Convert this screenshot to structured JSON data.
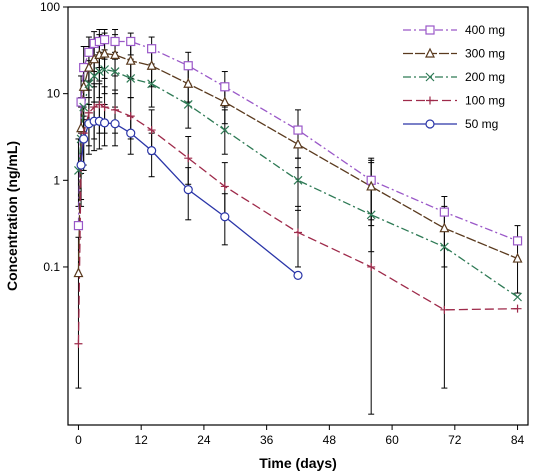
{
  "chart_data": {
    "type": "line",
    "xlabel": "Time (days)",
    "ylabel": "Concentration (ng/mL)",
    "x_ticks": [
      0,
      12,
      24,
      36,
      48,
      60,
      72,
      84
    ],
    "y_ticks": [
      {
        "value": 0.1,
        "label": "0.1"
      },
      {
        "value": 1,
        "label": "1"
      },
      {
        "value": 10,
        "label": "10"
      },
      {
        "value": 100,
        "label": "100"
      }
    ],
    "xlim": [
      -2,
      86
    ],
    "ylim": [
      0.0015,
      100
    ],
    "y_scale": "log",
    "grid": false,
    "legend_position": "top-right",
    "series": [
      {
        "name": "400 mg",
        "color": "#9a58c8",
        "dash": "8,3,2,3",
        "marker": "square",
        "points": [
          {
            "x": 0,
            "y": 0.3
          },
          {
            "x": 0.5,
            "y": 8,
            "lo": 3,
            "hi": 16
          },
          {
            "x": 1,
            "y": 20,
            "lo": 9,
            "hi": 35
          },
          {
            "x": 2,
            "y": 30,
            "lo": 14,
            "hi": 45
          },
          {
            "x": 3,
            "y": 38,
            "lo": 18,
            "hi": 52
          },
          {
            "x": 4,
            "y": 40,
            "lo": 20,
            "hi": 55
          },
          {
            "x": 5,
            "y": 42,
            "lo": 25,
            "hi": 55
          },
          {
            "x": 7,
            "y": 40,
            "lo": 25,
            "hi": 55
          },
          {
            "x": 10,
            "y": 40,
            "lo": 28,
            "hi": 50
          },
          {
            "x": 14,
            "y": 33,
            "lo": 22,
            "hi": 45
          },
          {
            "x": 21,
            "y": 21,
            "lo": 13,
            "hi": 30
          },
          {
            "x": 28,
            "y": 12,
            "lo": 7,
            "hi": 18
          },
          {
            "x": 42,
            "y": 3.8,
            "lo": 1.8,
            "hi": 6.5
          },
          {
            "x": 56,
            "y": 1.0,
            "lo": 0.35,
            "hi": 1.8
          },
          {
            "x": 70,
            "y": 0.43
          },
          {
            "x": 84,
            "y": 0.2
          }
        ]
      },
      {
        "name": "300 mg",
        "color": "#5a3a1e",
        "dash": "10,2",
        "marker": "triangle",
        "points": [
          {
            "x": 0,
            "y": 0.085
          },
          {
            "x": 0.5,
            "y": 4,
            "lo": 1.5,
            "hi": 9
          },
          {
            "x": 1,
            "y": 12,
            "lo": 5,
            "hi": 22
          },
          {
            "x": 2,
            "y": 20,
            "lo": 9,
            "hi": 35
          },
          {
            "x": 3,
            "y": 25,
            "lo": 12,
            "hi": 42
          },
          {
            "x": 4,
            "y": 28,
            "lo": 14,
            "hi": 48
          },
          {
            "x": 5,
            "y": 29,
            "lo": 15,
            "hi": 50
          },
          {
            "x": 7,
            "y": 28,
            "lo": 16,
            "hi": 48
          },
          {
            "x": 10,
            "y": 24,
            "lo": 15,
            "hi": 38
          },
          {
            "x": 14,
            "y": 21,
            "lo": 12,
            "hi": 32
          },
          {
            "x": 21,
            "y": 13,
            "lo": 8,
            "hi": 22
          },
          {
            "x": 28,
            "y": 8,
            "lo": 4.5,
            "hi": 13
          },
          {
            "x": 42,
            "y": 2.6,
            "lo": 1.4,
            "hi": 4
          },
          {
            "x": 56,
            "y": 0.85,
            "lo": 0.3,
            "hi": 1.6
          },
          {
            "x": 70,
            "y": 0.28,
            "lo": 0.1,
            "hi": 0.5
          },
          {
            "x": 84,
            "y": 0.125,
            "lo": 0.05,
            "hi": 0.3
          }
        ]
      },
      {
        "name": "200 mg",
        "color": "#2e7a55",
        "dash": "8,3,2,3",
        "marker": "x",
        "points": [
          {
            "x": 0,
            "y": 1.3,
            "lo": 0.5,
            "hi": 3
          },
          {
            "x": 0.5,
            "y": 3,
            "lo": 1.2,
            "hi": 7
          },
          {
            "x": 1,
            "y": 7,
            "lo": 3,
            "hi": 14
          },
          {
            "x": 2,
            "y": 13,
            "lo": 6,
            "hi": 24
          },
          {
            "x": 3,
            "y": 16,
            "lo": 8,
            "hi": 28
          },
          {
            "x": 4,
            "y": 18,
            "lo": 9,
            "hi": 30
          },
          {
            "x": 5,
            "y": 19,
            "lo": 10,
            "hi": 32
          },
          {
            "x": 7,
            "y": 18,
            "lo": 10,
            "hi": 30
          },
          {
            "x": 10,
            "y": 15,
            "lo": 9,
            "hi": 25
          },
          {
            "x": 14,
            "y": 13,
            "lo": 7,
            "hi": 20
          },
          {
            "x": 21,
            "y": 7.5,
            "lo": 4,
            "hi": 12
          },
          {
            "x": 28,
            "y": 3.8,
            "lo": 2,
            "hi": 6.5
          },
          {
            "x": 42,
            "y": 1.0,
            "lo": 0.45,
            "hi": 1.8
          },
          {
            "x": 56,
            "y": 0.4,
            "lo": 0.15,
            "hi": 0.8
          },
          {
            "x": 70,
            "y": 0.17
          },
          {
            "x": 84,
            "y": 0.045
          }
        ]
      },
      {
        "name": "100 mg",
        "color": "#9e2a4a",
        "dash": "9,4",
        "marker": "plus",
        "points": [
          {
            "x": 0,
            "y": 0.013,
            "lo": 0.004,
            "hi": 0.22
          },
          {
            "x": 0.5,
            "y": 1.5,
            "lo": 0.5,
            "hi": 3.5
          },
          {
            "x": 1,
            "y": 3.5,
            "lo": 1.5,
            "hi": 7
          },
          {
            "x": 2,
            "y": 6,
            "lo": 2.5,
            "hi": 11
          },
          {
            "x": 3,
            "y": 7,
            "lo": 3,
            "hi": 13
          },
          {
            "x": 4,
            "y": 7.5,
            "lo": 3.5,
            "hi": 13
          },
          {
            "x": 5,
            "y": 7,
            "lo": 3.5,
            "hi": 12
          },
          {
            "x": 7,
            "y": 6.5,
            "lo": 3.5,
            "hi": 11
          },
          {
            "x": 10,
            "y": 5.5,
            "lo": 3,
            "hi": 9
          },
          {
            "x": 14,
            "y": 3.8,
            "lo": 2,
            "hi": 6.5
          },
          {
            "x": 21,
            "y": 1.8,
            "lo": 0.9,
            "hi": 3.2
          },
          {
            "x": 28,
            "y": 0.85,
            "lo": 0.4,
            "hi": 1.6
          },
          {
            "x": 42,
            "y": 0.25,
            "lo": 0.1,
            "hi": 0.5
          },
          {
            "x": 56,
            "y": 0.1,
            "lo": 0.002,
            "hi": 1.7
          },
          {
            "x": 70,
            "y": 0.032,
            "lo": 0.004,
            "hi": 0.65
          },
          {
            "x": 84,
            "y": 0.033
          }
        ]
      },
      {
        "name": "50 mg",
        "color": "#2a35a8",
        "dash": "",
        "marker": "circle",
        "points": [
          {
            "x": 0.5,
            "y": 1.5,
            "lo": 0.6,
            "hi": 3
          },
          {
            "x": 1,
            "y": 3,
            "lo": 1.3,
            "hi": 5.5
          },
          {
            "x": 2,
            "y": 4.5,
            "lo": 2,
            "hi": 7.5
          },
          {
            "x": 3,
            "y": 4.8,
            "lo": 2.2,
            "hi": 8
          },
          {
            "x": 4,
            "y": 4.8,
            "lo": 2.3,
            "hi": 8
          },
          {
            "x": 5,
            "y": 4.6,
            "lo": 2.5,
            "hi": 7.5
          },
          {
            "x": 7,
            "y": 4.5,
            "lo": 2.5,
            "hi": 7
          },
          {
            "x": 10,
            "y": 3.5,
            "lo": 2,
            "hi": 5.5
          },
          {
            "x": 14,
            "y": 2.2,
            "lo": 1.1,
            "hi": 3.5
          },
          {
            "x": 21,
            "y": 0.78,
            "lo": 0.35,
            "hi": 1.4
          },
          {
            "x": 28,
            "y": 0.38,
            "lo": 0.18,
            "hi": 0.7
          },
          {
            "x": 42,
            "y": 0.08
          }
        ]
      }
    ]
  }
}
